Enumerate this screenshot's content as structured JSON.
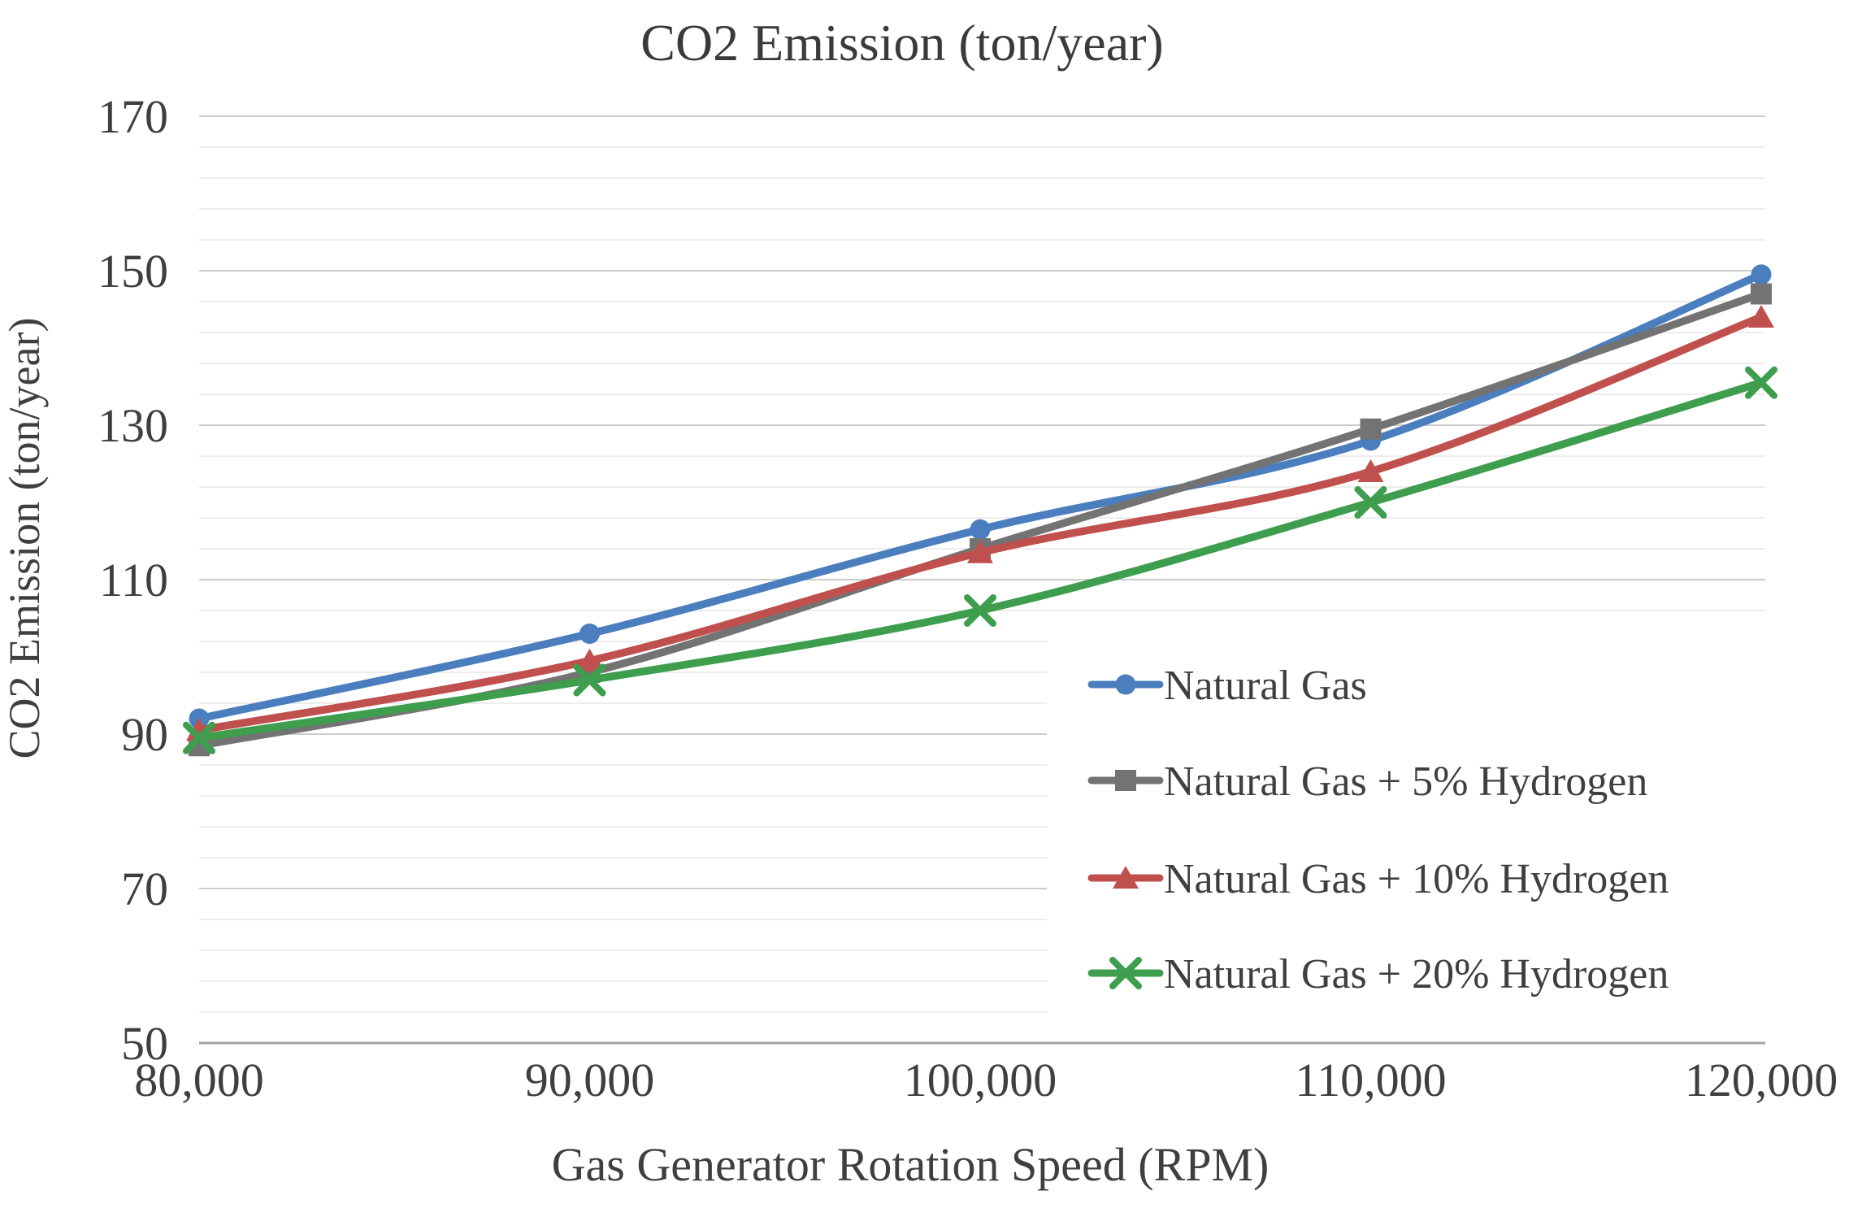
{
  "chart_data": {
    "type": "line",
    "title": "CO2 Emission (ton/year)",
    "xlabel": "Gas Generator Rotation Speed (RPM)",
    "ylabel": "CO2 Emission (ton/year)",
    "x": [
      80000,
      90000,
      100000,
      110000,
      120000
    ],
    "x_tick_labels": [
      "80,000",
      "90,000",
      "100,000",
      "110,000",
      "120,000"
    ],
    "y_ticks": [
      50,
      70,
      90,
      110,
      130,
      150,
      170
    ],
    "ylim": [
      50,
      170
    ],
    "xlim": [
      80000,
      120000
    ],
    "y_major_step": 20,
    "y_minor_step": 4,
    "grid": "horizontal major + minor, no vertical gridlines",
    "legend_position": "inside lower-right, white background, vertical list",
    "line_style": "smoothed lines with markers",
    "series": [
      {
        "name": "Natural Gas",
        "color": "#4A7EBE",
        "marker": "circle",
        "values": [
          92,
          103,
          116.5,
          128,
          149.5
        ]
      },
      {
        "name": "Natural Gas + 5% Hydrogen",
        "color": "#737373",
        "marker": "square",
        "values": [
          88.5,
          98,
          114,
          129.5,
          147
        ]
      },
      {
        "name": "Natural Gas + 10% Hydrogen",
        "color": "#C0504D",
        "marker": "triangle",
        "values": [
          90.5,
          99.5,
          113.5,
          124,
          144
        ]
      },
      {
        "name": "Natural Gas + 20% Hydrogen",
        "color": "#3E9E4E",
        "marker": "x",
        "values": [
          89.5,
          97,
          106,
          120,
          135.5
        ]
      }
    ],
    "colors": {
      "major_grid": "#CCCCCC",
      "minor_grid": "#EDEDED",
      "axis_line": "#A3A3A3",
      "text": "#3f3f3f"
    }
  }
}
